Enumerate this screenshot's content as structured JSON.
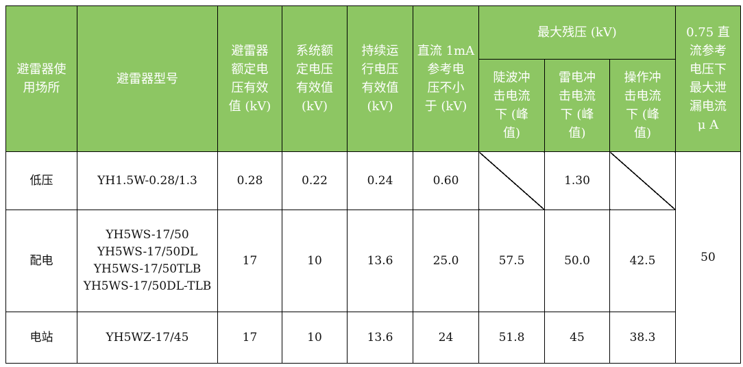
{
  "colors": {
    "header_bg": "#8dc663",
    "header_text": "#ffffff"
  },
  "headers": {
    "location": "避雷器使\n用场所",
    "model": "避雷器型号",
    "rated_voltage": "避雷器\n额定电\n压有效\n值 (kV)",
    "system_voltage": "系统额\n定电压\n有效值\n(kV)",
    "continuous_voltage": "持续运\n行电压\n有效值\n(kV)",
    "dc_ref": "直流 1mA\n参考电\n压不小\n于 (kV)",
    "max_residual": "最大残压 (kV)",
    "steep": "陡波冲\n击电流\n下 (峰\n值)",
    "lightning": "雷电冲\n击电流\n下 (峰\n值)",
    "switching": "操作冲\n击电流\n下 (峰\n值)",
    "leakage": "0.75 直\n流参考\n电压下\n最大泄\n漏电流\nμ A"
  },
  "rows": [
    {
      "location": "低压",
      "model": "YH1.5W-0.28/1.3",
      "rated": "0.28",
      "system": "0.22",
      "continuous": "0.24",
      "dc_ref": "0.60",
      "steep": "",
      "lightning": "1.30",
      "switching": ""
    },
    {
      "location": "配电",
      "model": "YH5WS-17/50\nYH5WS-17/50DL\nYH5WS-17/50TLB\nYH5WS-17/50DL-TLB",
      "rated": "17",
      "system": "10",
      "continuous": "13.6",
      "dc_ref": "25.0",
      "steep": "57.5",
      "lightning": "50.0",
      "switching": "42.5"
    },
    {
      "location": "电站",
      "model": "YH5WZ-17/45",
      "rated": "17",
      "system": "10",
      "continuous": "13.6",
      "dc_ref": "24",
      "steep": "51.8",
      "lightning": "45",
      "switching": "38.3"
    }
  ],
  "leakage_value": "50"
}
